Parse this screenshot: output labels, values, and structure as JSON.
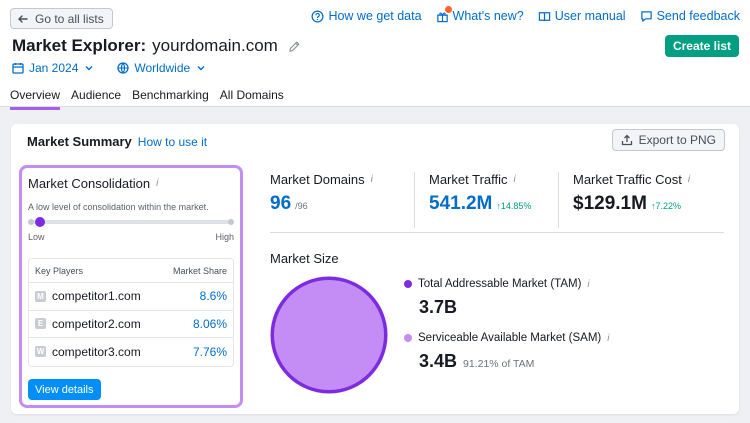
{
  "nav": {
    "back_label": "Go to all lists",
    "links": [
      {
        "label": "How we get data",
        "icon": "help-circle-icon"
      },
      {
        "label": "What's new?",
        "icon": "gift-icon"
      },
      {
        "label": "User manual",
        "icon": "book-icon"
      },
      {
        "label": "Send feedback",
        "icon": "feedback-icon"
      }
    ]
  },
  "header": {
    "title_prefix": "Market Explorer:",
    "title_domain": "yourdomain.com",
    "create_label": "Create list",
    "date_filter": "Jan 2024",
    "region_filter": "Worldwide"
  },
  "tabs": [
    "Overview",
    "Audience",
    "Benchmarking",
    "All Domains"
  ],
  "summary": {
    "title": "Market Summary",
    "howto": "How to use it",
    "export_label": "Export to PNG"
  },
  "consolidation": {
    "title": "Market Consolidation",
    "info": "i",
    "description": "A low level of consolidation within the market.",
    "level": 0.05,
    "low_label": "Low",
    "high_label": "High",
    "col_players": "Key Players",
    "col_share": "Market Share",
    "players": [
      {
        "initial": "M",
        "domain": "competitor1.com",
        "share": "8.6%"
      },
      {
        "initial": "E",
        "domain": "competitor2.com",
        "share": "8.06%"
      },
      {
        "initial": "W",
        "domain": "competitor3.com",
        "share": "7.76%"
      }
    ],
    "view_label": "View details"
  },
  "metrics": {
    "domains": {
      "label": "Market Domains",
      "value": "96",
      "sub": "/96"
    },
    "traffic": {
      "label": "Market Traffic",
      "value": "541.2M",
      "change": "↑14.85%"
    },
    "cost": {
      "label": "Market Traffic Cost",
      "value": "$129.1M",
      "change": "↑7.22%"
    }
  },
  "market_size": {
    "title": "Market Size",
    "tam_label": "Total Addressable Market (TAM)",
    "tam_value": "3.7B",
    "sam_label": "Serviceable Available Market (SAM)",
    "sam_value": "3.4B",
    "sam_sub": "91.21% of TAM",
    "tam_color": "#7d2be0",
    "sam_color": "#c48cf5"
  },
  "colors": {
    "accent": "#a75eed",
    "link": "#006dca",
    "primary": "#009f81",
    "button": "#008ff8"
  }
}
